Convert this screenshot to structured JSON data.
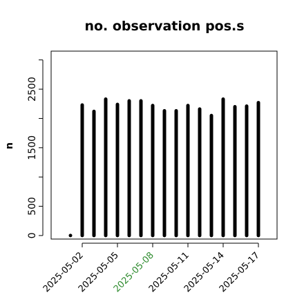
{
  "chart_data": {
    "type": "bar",
    "title": "no. observation pos.s",
    "ylabel": "n",
    "xlabel": "",
    "ylim": [
      -60,
      3150
    ],
    "yticks": [
      0,
      500,
      1500,
      2500
    ],
    "xticks": [
      {
        "label": "2025-05-02",
        "color": "#000000"
      },
      {
        "label": "2025-05-05",
        "color": "#000000"
      },
      {
        "label": "2025-05-08",
        "color": "#2e8b2e"
      },
      {
        "label": "2025-05-11",
        "color": "#000000"
      },
      {
        "label": "2025-05-14",
        "color": "#000000"
      },
      {
        "label": "2025-05-17",
        "color": "#000000"
      }
    ],
    "x": [
      "2025-05-01",
      "2025-05-02",
      "2025-05-03",
      "2025-05-04",
      "2025-05-05",
      "2025-05-06",
      "2025-05-07",
      "2025-05-08",
      "2025-05-09",
      "2025-05-10",
      "2025-05-11",
      "2025-05-12",
      "2025-05-13",
      "2025-05-14",
      "2025-05-15",
      "2025-05-16",
      "2025-05-17"
    ],
    "values": [
      0,
      2230,
      2120,
      2330,
      2240,
      2300,
      2300,
      2220,
      2130,
      2130,
      2220,
      2160,
      2050,
      2330,
      2200,
      2210,
      2270
    ],
    "grid": false,
    "bar_color": "#000000"
  }
}
